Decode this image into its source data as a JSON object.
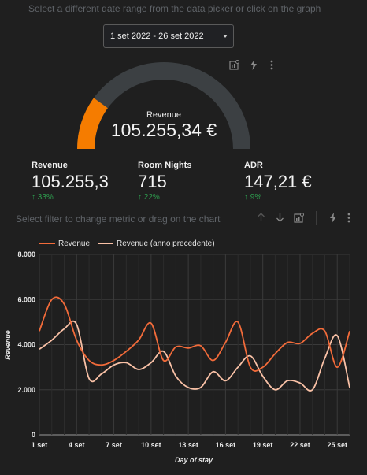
{
  "hints": {
    "top": "Select a different date range from the data picker or click on the graph",
    "middle": "Select filter to change metric or drag on the chart"
  },
  "date_picker": {
    "value": "1 set 2022 - 26 set 2022"
  },
  "toolbar_icons": [
    "chart-explore-icon",
    "bolt-icon",
    "more-vertical-icon"
  ],
  "chart_toolbar_icons": [
    "arrow-up-icon",
    "arrow-down-icon",
    "chart-explore-icon",
    "bolt-icon",
    "more-vertical-icon"
  ],
  "gauge": {
    "title": "Revenue",
    "value": "105.255,34 €",
    "fill_fraction": 0.2,
    "colors": {
      "fill": "#f57c00",
      "track": "#3c4043"
    }
  },
  "metrics": [
    {
      "label": "Revenue",
      "value": "105.255,3",
      "delta": "↑ 33%"
    },
    {
      "label": "Room Nights",
      "value": "715",
      "delta": "↑ 22%"
    },
    {
      "label": "ADR",
      "value": "147,21 €",
      "delta": "↑ 9%"
    }
  ],
  "chart_data": {
    "type": "line",
    "xlabel": "Day of stay",
    "ylabel": "Revenue",
    "ylim": [
      0,
      8000
    ],
    "yticks": [
      "0",
      "2.000",
      "4.000",
      "6.000",
      "8.000"
    ],
    "x_tick_labels": [
      "1 set",
      "4 set",
      "7 set",
      "10 set",
      "13 set",
      "16 set",
      "19 set",
      "22 set",
      "25 set"
    ],
    "grid": true,
    "legend_placement": "top-left",
    "series": [
      {
        "name": "Revenue",
        "color": "#f26b3a",
        "values": [
          4600,
          6000,
          5800,
          4200,
          3300,
          3100,
          3300,
          3700,
          4200,
          4950,
          3300,
          3900,
          3850,
          3950,
          3300,
          4100,
          5000,
          3000,
          3000,
          3600,
          4100,
          4050,
          4500,
          4600,
          3000,
          4600
        ]
      },
      {
        "name": "Revenue (anno precedente)",
        "color": "#f9c1a6",
        "values": [
          3800,
          4200,
          4700,
          4900,
          2500,
          2700,
          3100,
          3200,
          2900,
          3200,
          3700,
          2600,
          2100,
          2100,
          2800,
          2400,
          3000,
          3500,
          2600,
          2000,
          2400,
          2300,
          2000,
          3400,
          4400,
          2100
        ]
      }
    ]
  }
}
